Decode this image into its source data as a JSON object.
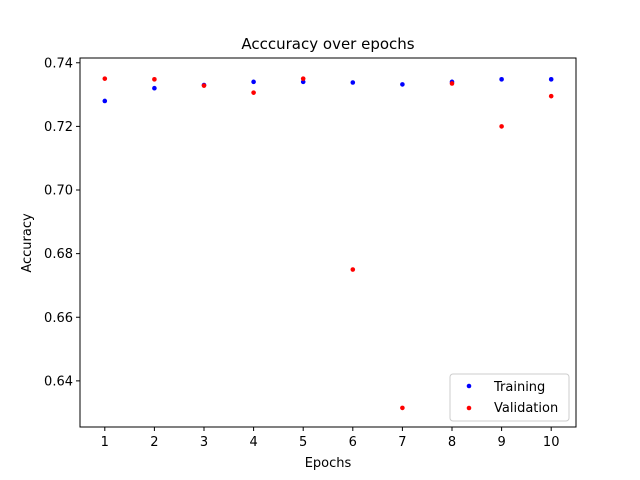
{
  "chart_data": {
    "type": "scatter",
    "title": "Acccuracy over epochs",
    "xlabel": "Epochs",
    "ylabel": "Accuracy",
    "x": [
      1,
      2,
      3,
      4,
      5,
      6,
      7,
      8,
      9,
      10
    ],
    "xlim": [
      0.5,
      10.5
    ],
    "ylim": [
      0.6255,
      0.7415
    ],
    "xticks": [
      1,
      2,
      3,
      4,
      5,
      6,
      7,
      8,
      9,
      10
    ],
    "yticks": [
      0.64,
      0.66,
      0.68,
      0.7,
      0.72,
      0.74
    ],
    "ytick_labels": [
      "0.64",
      "0.66",
      "0.68",
      "0.70",
      "0.72",
      "0.74"
    ],
    "grid": false,
    "legend_position": "lower right",
    "series": [
      {
        "name": "Training",
        "color": "#0000ff",
        "values": [
          0.728,
          0.732,
          0.733,
          0.734,
          0.734,
          0.7338,
          0.7332,
          0.734,
          0.7348,
          0.7348
        ]
      },
      {
        "name": "Validation",
        "color": "#ff0000",
        "values": [
          0.735,
          0.7348,
          0.7328,
          0.7306,
          0.735,
          0.675,
          0.6315,
          0.7335,
          0.72,
          0.7295
        ]
      }
    ]
  }
}
